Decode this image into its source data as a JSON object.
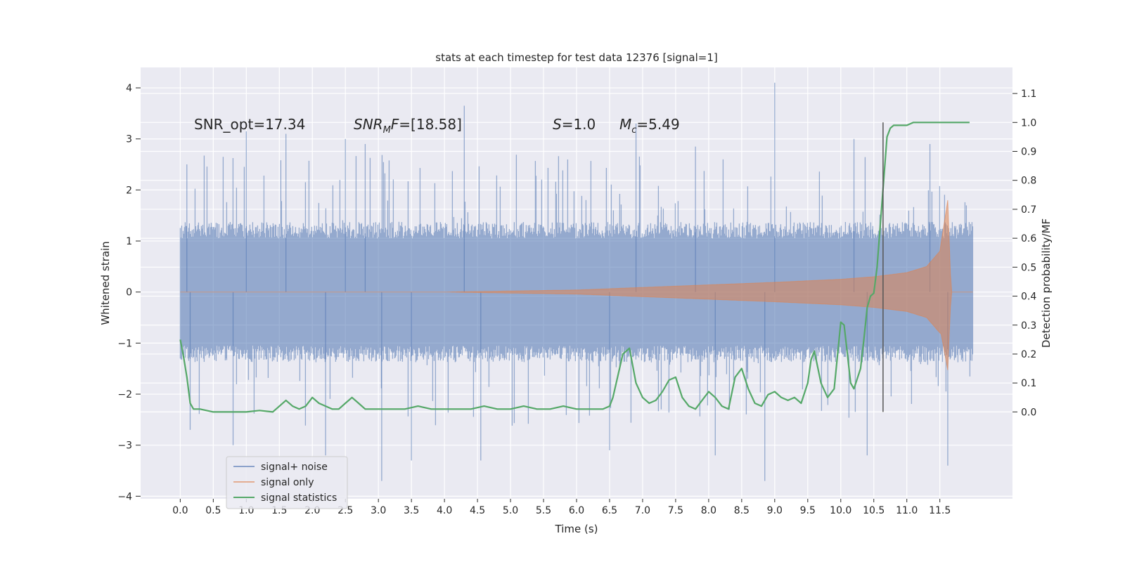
{
  "chart_data": {
    "type": "line",
    "title": "stats at each timestep for test data 12376 [signal=1]",
    "xlabel": "Time (s)",
    "ylabel_left": "Whitened strain",
    "ylabel_right": "Detection probability/MF",
    "xlim": [
      -0.6,
      12.6
    ],
    "ylim_left": [
      -4.05,
      4.4
    ],
    "ylim_right": [
      -0.3,
      1.19
    ],
    "x_ticks": [
      0.0,
      0.5,
      1.0,
      1.5,
      2.0,
      2.5,
      3.0,
      3.5,
      4.0,
      4.5,
      5.0,
      5.5,
      6.0,
      6.5,
      7.0,
      7.5,
      8.0,
      8.5,
      9.0,
      9.5,
      10.0,
      10.5,
      11.0,
      11.5
    ],
    "x_tick_labels": [
      "0.0",
      "0.5",
      "1.0",
      "1.5",
      "2.0",
      "2.5",
      "3.0",
      "3.5",
      "4.0",
      "4.5",
      "5.0",
      "5.5",
      "6.0",
      "6.5",
      "7.0",
      "7.5",
      "8.0",
      "8.5",
      "9.0",
      "9.5",
      "10.0",
      "10.5",
      "11.0",
      "11.5"
    ],
    "y_left_ticks": [
      -4,
      -3,
      -2,
      -1,
      0,
      1,
      2,
      3,
      4
    ],
    "y_left_tick_labels": [
      "−4",
      "−3",
      "−2",
      "−1",
      "0",
      "1",
      "2",
      "3",
      "4"
    ],
    "y_right_ticks": [
      0.0,
      0.1,
      0.2,
      0.3,
      0.4,
      0.5,
      0.6,
      0.7,
      0.8,
      0.9,
      1.0,
      1.1
    ],
    "y_right_tick_labels": [
      "0.0",
      "0.1",
      "0.2",
      "0.3",
      "0.4",
      "0.5",
      "0.6",
      "0.7",
      "0.8",
      "0.9",
      "1.0",
      "1.1"
    ],
    "grid": true,
    "legend_position": "lower-left",
    "annotations": {
      "snr_opt": "SNR_opt=17.34",
      "snr_mf_symbol": "SNR",
      "snr_mf_sub": "M",
      "snr_mf_suffix": "F",
      "snr_mf_value": "=[18.58]",
      "s_symbol": "S",
      "s_value": "=1.0",
      "mc_symbol": "M",
      "mc_sub": "c",
      "mc_value": "=5.49"
    },
    "vertical_marker_x": 10.64,
    "series": [
      {
        "name": "signal+ noise",
        "color": "#4c72b0",
        "kind": "noise-band",
        "x_range": [
          0.0,
          12.0
        ],
        "typical_amplitude": 1.4,
        "peak_values": [
          {
            "x": 0.1,
            "y": 2.5
          },
          {
            "x": 0.15,
            "y": -2.7
          },
          {
            "x": 0.8,
            "y": -3.0
          },
          {
            "x": 1.0,
            "y": 3.15
          },
          {
            "x": 1.6,
            "y": 3.1
          },
          {
            "x": 2.2,
            "y": -3.2
          },
          {
            "x": 2.5,
            "y": 3.0
          },
          {
            "x": 2.8,
            "y": 2.9
          },
          {
            "x": 3.05,
            "y": -3.7
          },
          {
            "x": 3.5,
            "y": -3.3
          },
          {
            "x": 4.3,
            "y": 3.65
          },
          {
            "x": 4.55,
            "y": -3.3
          },
          {
            "x": 6.5,
            "y": -3.1
          },
          {
            "x": 6.9,
            "y": 3.3
          },
          {
            "x": 7.8,
            "y": 2.85
          },
          {
            "x": 8.1,
            "y": -3.2
          },
          {
            "x": 8.85,
            "y": -3.7
          },
          {
            "x": 9.0,
            "y": 4.1
          },
          {
            "x": 10.2,
            "y": 3.0
          },
          {
            "x": 10.4,
            "y": -3.2
          },
          {
            "x": 11.35,
            "y": 2.9
          },
          {
            "x": 11.62,
            "y": -3.4
          }
        ]
      },
      {
        "name": "signal only",
        "color": "#dd8452",
        "kind": "chirp",
        "envelope": [
          {
            "x": 0.0,
            "y": 0.0
          },
          {
            "x": 4.0,
            "y": 0.0
          },
          {
            "x": 6.0,
            "y": 0.04
          },
          {
            "x": 7.0,
            "y": 0.09
          },
          {
            "x": 8.0,
            "y": 0.14
          },
          {
            "x": 9.0,
            "y": 0.19
          },
          {
            "x": 10.0,
            "y": 0.25
          },
          {
            "x": 10.5,
            "y": 0.3
          },
          {
            "x": 11.0,
            "y": 0.38
          },
          {
            "x": 11.3,
            "y": 0.5
          },
          {
            "x": 11.5,
            "y": 0.8
          },
          {
            "x": 11.62,
            "y": 1.8
          },
          {
            "x": 11.67,
            "y": 0.0
          },
          {
            "x": 12.0,
            "y": 0.0
          }
        ]
      },
      {
        "name": "signal statistics",
        "color": "#55a868",
        "kind": "line",
        "axis": "right",
        "x": [
          0.0,
          0.05,
          0.1,
          0.15,
          0.2,
          0.3,
          0.5,
          0.8,
          1.0,
          1.2,
          1.4,
          1.6,
          1.7,
          1.8,
          1.9,
          2.0,
          2.1,
          2.2,
          2.3,
          2.4,
          2.5,
          2.6,
          2.7,
          2.8,
          2.9,
          3.0,
          3.2,
          3.4,
          3.6,
          3.8,
          3.9,
          4.0,
          4.2,
          4.4,
          4.6,
          4.8,
          5.0,
          5.2,
          5.4,
          5.6,
          5.8,
          6.0,
          6.2,
          6.4,
          6.5,
          6.55,
          6.6,
          6.7,
          6.8,
          6.9,
          7.0,
          7.1,
          7.2,
          7.3,
          7.4,
          7.5,
          7.6,
          7.7,
          7.8,
          7.9,
          8.0,
          8.1,
          8.2,
          8.3,
          8.4,
          8.5,
          8.6,
          8.7,
          8.8,
          8.9,
          9.0,
          9.1,
          9.2,
          9.3,
          9.4,
          9.5,
          9.55,
          9.6,
          9.7,
          9.8,
          9.9,
          10.0,
          10.05,
          10.1,
          10.15,
          10.2,
          10.3,
          10.35,
          10.4,
          10.45,
          10.5,
          10.55,
          10.6,
          10.65,
          10.7,
          10.75,
          10.8,
          10.9,
          11.0,
          11.1,
          11.2,
          11.4,
          11.6,
          11.8,
          11.95
        ],
        "y": [
          0.25,
          0.19,
          0.12,
          0.03,
          0.01,
          0.01,
          0.0,
          0.0,
          0.0,
          0.005,
          0.0,
          0.04,
          0.02,
          0.01,
          0.02,
          0.05,
          0.03,
          0.02,
          0.01,
          0.01,
          0.03,
          0.05,
          0.03,
          0.01,
          0.01,
          0.01,
          0.01,
          0.01,
          0.02,
          0.01,
          0.01,
          0.01,
          0.01,
          0.01,
          0.02,
          0.01,
          0.01,
          0.02,
          0.01,
          0.01,
          0.02,
          0.01,
          0.01,
          0.01,
          0.02,
          0.05,
          0.1,
          0.2,
          0.22,
          0.1,
          0.05,
          0.03,
          0.04,
          0.07,
          0.11,
          0.12,
          0.05,
          0.02,
          0.01,
          0.04,
          0.07,
          0.05,
          0.02,
          0.01,
          0.12,
          0.15,
          0.08,
          0.03,
          0.02,
          0.06,
          0.07,
          0.05,
          0.04,
          0.05,
          0.03,
          0.1,
          0.18,
          0.21,
          0.1,
          0.05,
          0.08,
          0.31,
          0.3,
          0.2,
          0.1,
          0.08,
          0.15,
          0.25,
          0.36,
          0.4,
          0.41,
          0.5,
          0.65,
          0.8,
          0.95,
          0.98,
          0.99,
          0.99,
          0.99,
          1.0,
          1.0,
          1.0,
          1.0,
          1.0,
          1.0
        ]
      }
    ]
  }
}
